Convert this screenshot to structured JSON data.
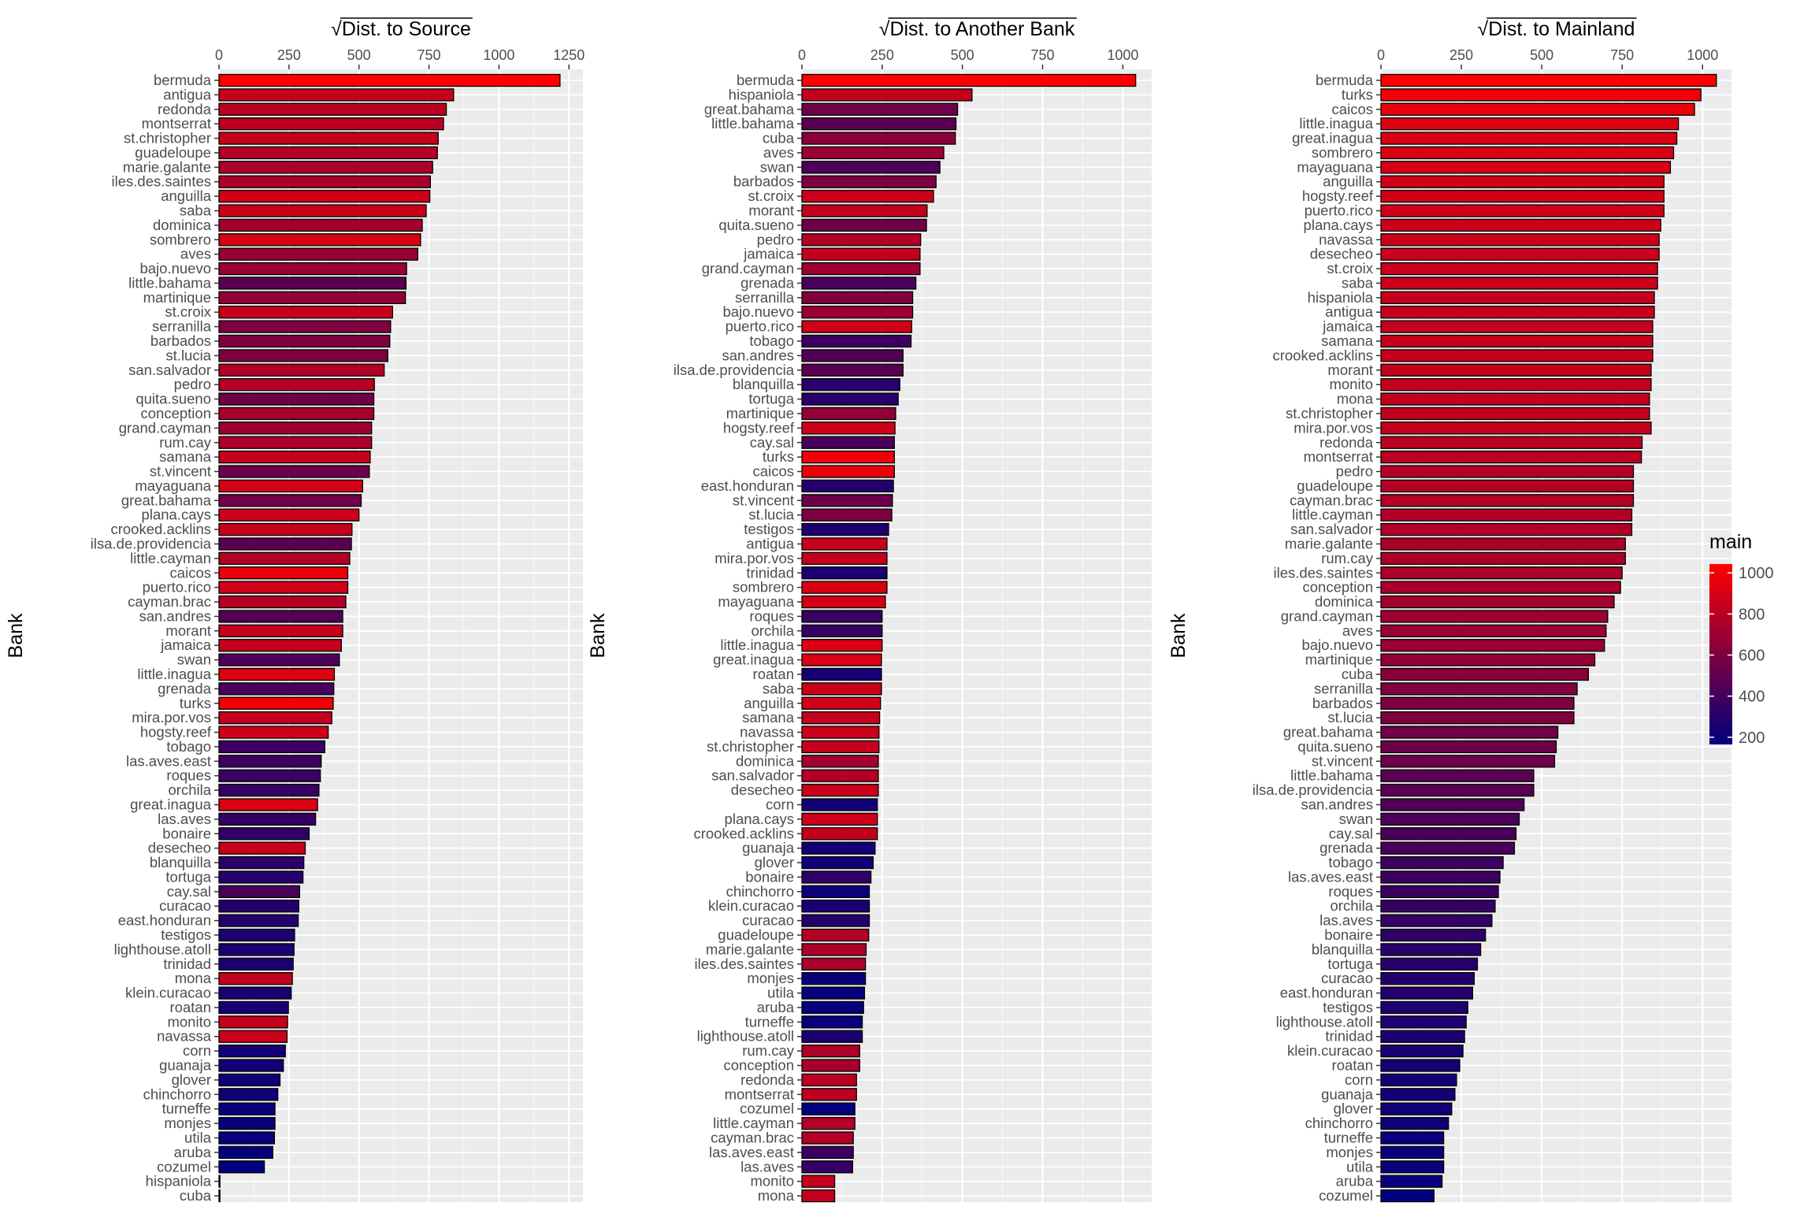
{
  "chart_data": [
    {
      "type": "bar",
      "orientation": "horizontal",
      "title": "Dist. to Source",
      "title_symbol": "√",
      "ylabel": "Bank",
      "xlim": [
        0,
        1300
      ],
      "xticks": [
        0,
        250,
        500,
        750,
        1000,
        1250
      ],
      "categories": [
        "bermuda",
        "antigua",
        "redonda",
        "montserrat",
        "st.christopher",
        "guadeloupe",
        "marie.galante",
        "iles.des.saintes",
        "anguilla",
        "saba",
        "dominica",
        "sombrero",
        "aves",
        "bajo.nuevo",
        "little.bahama",
        "martinique",
        "st.croix",
        "serranilla",
        "barbados",
        "st.lucia",
        "san.salvador",
        "pedro",
        "quita.sueno",
        "conception",
        "grand.cayman",
        "rum.cay",
        "samana",
        "st.vincent",
        "mayaguana",
        "great.bahama",
        "plana.cays",
        "crooked.acklins",
        "ilsa.de.providencia",
        "little.cayman",
        "caicos",
        "puerto.rico",
        "cayman.brac",
        "san.andres",
        "morant",
        "jamaica",
        "swan",
        "little.inagua",
        "grenada",
        "turks",
        "mira.por.vos",
        "hogsty.reef",
        "tobago",
        "las.aves.east",
        "roques",
        "orchila",
        "great.inagua",
        "las.aves",
        "bonaire",
        "desecheo",
        "blanquilla",
        "tortuga",
        "cay.sal",
        "curacao",
        "east.honduran",
        "testigos",
        "lighthouse.atoll",
        "trinidad",
        "mona",
        "klein.curacao",
        "roatan",
        "monito",
        "navassa",
        "corn",
        "guanaja",
        "glover",
        "chinchorro",
        "turneffe",
        "monjes",
        "utila",
        "aruba",
        "cozumel",
        "hispaniola",
        "cuba"
      ],
      "values": [
        1218,
        838,
        812,
        802,
        783,
        780,
        763,
        755,
        753,
        740,
        726,
        720,
        710,
        670,
        668,
        666,
        620,
        613,
        610,
        603,
        590,
        555,
        553,
        553,
        545,
        545,
        540,
        537,
        513,
        508,
        500,
        475,
        473,
        467,
        460,
        460,
        453,
        442,
        442,
        437,
        430,
        412,
        410,
        408,
        403,
        390,
        378,
        365,
        362,
        357,
        352,
        345,
        322,
        308,
        303,
        300,
        288,
        285,
        283,
        270,
        268,
        265,
        262,
        258,
        248,
        245,
        243,
        237,
        230,
        218,
        210,
        200,
        200,
        198,
        192,
        162,
        2,
        2
      ],
      "main": [
        1043,
        850,
        812,
        810,
        850,
        785,
        760,
        750,
        880,
        860,
        725,
        910,
        700,
        695,
        475,
        665,
        860,
        610,
        600,
        600,
        780,
        785,
        545,
        745,
        705,
        760,
        845,
        540,
        900,
        550,
        870,
        845,
        475,
        780,
        975,
        880,
        785,
        445,
        840,
        845,
        430,
        925,
        415,
        995,
        840,
        880,
        380,
        370,
        365,
        355,
        920,
        345,
        325,
        865,
        310,
        300,
        420,
        290,
        285,
        270,
        265,
        260,
        835,
        255,
        245,
        840,
        865,
        230,
        225,
        220,
        210,
        195,
        195,
        195,
        190,
        165,
        850,
        645
      ]
    },
    {
      "type": "bar",
      "orientation": "horizontal",
      "title": "Dist. to Another Bank",
      "title_symbol": "√",
      "ylabel": "Bank",
      "xlim": [
        0,
        1090
      ],
      "xticks": [
        0,
        250,
        500,
        750,
        1000
      ],
      "categories": [
        "bermuda",
        "hispaniola",
        "great.bahama",
        "little.bahama",
        "cuba",
        "aves",
        "swan",
        "barbados",
        "st.croix",
        "morant",
        "quita.sueno",
        "pedro",
        "jamaica",
        "grand.cayman",
        "grenada",
        "serranilla",
        "bajo.nuevo",
        "puerto.rico",
        "tobago",
        "san.andres",
        "ilsa.de.providencia",
        "blanquilla",
        "tortuga",
        "martinique",
        "hogsty.reef",
        "cay.sal",
        "turks",
        "caicos",
        "east.honduran",
        "st.vincent",
        "st.lucia",
        "testigos",
        "antigua",
        "mira.por.vos",
        "trinidad",
        "sombrero",
        "mayaguana",
        "roques",
        "orchila",
        "little.inagua",
        "great.inagua",
        "roatan",
        "saba",
        "anguilla",
        "samana",
        "navassa",
        "st.christopher",
        "dominica",
        "san.salvador",
        "desecheo",
        "corn",
        "plana.cays",
        "crooked.acklins",
        "guanaja",
        "glover",
        "bonaire",
        "chinchorro",
        "klein.curacao",
        "curacao",
        "guadeloupe",
        "marie.galante",
        "iles.des.saintes",
        "monjes",
        "utila",
        "aruba",
        "turneffe",
        "lighthouse.atoll",
        "rum.cay",
        "conception",
        "redonda",
        "montserrat",
        "cozumel",
        "little.cayman",
        "cayman.brac",
        "las.aves.east",
        "las.aves",
        "monito",
        "mona"
      ],
      "values": [
        1040,
        530,
        485,
        480,
        478,
        442,
        430,
        418,
        410,
        390,
        388,
        370,
        368,
        368,
        355,
        345,
        345,
        342,
        340,
        315,
        315,
        305,
        300,
        292,
        290,
        288,
        288,
        288,
        285,
        282,
        280,
        270,
        265,
        265,
        265,
        265,
        260,
        250,
        250,
        250,
        248,
        248,
        248,
        245,
        242,
        240,
        240,
        238,
        238,
        238,
        235,
        235,
        235,
        228,
        222,
        215,
        210,
        210,
        210,
        208,
        200,
        198,
        198,
        195,
        192,
        188,
        188,
        180,
        180,
        170,
        170,
        165,
        165,
        160,
        160,
        158,
        102,
        102
      ],
      "main": [
        1043,
        845,
        550,
        475,
        645,
        700,
        430,
        600,
        860,
        840,
        545,
        785,
        845,
        705,
        415,
        610,
        695,
        880,
        380,
        445,
        475,
        310,
        300,
        665,
        880,
        420,
        995,
        975,
        285,
        540,
        600,
        270,
        850,
        840,
        260,
        910,
        900,
        365,
        355,
        925,
        920,
        245,
        860,
        880,
        845,
        865,
        850,
        725,
        780,
        865,
        225,
        870,
        845,
        230,
        220,
        325,
        210,
        255,
        290,
        785,
        760,
        750,
        195,
        195,
        190,
        195,
        265,
        760,
        745,
        812,
        810,
        165,
        780,
        785,
        370,
        345,
        840,
        835
      ]
    },
    {
      "type": "bar",
      "orientation": "horizontal",
      "title": "Dist. to Mainland",
      "title_symbol": "√",
      "ylabel": "Bank",
      "xlim": [
        0,
        1090
      ],
      "xticks": [
        0,
        250,
        500,
        750,
        1000
      ],
      "categories": [
        "bermuda",
        "turks",
        "caicos",
        "little.inagua",
        "great.inagua",
        "sombrero",
        "mayaguana",
        "anguilla",
        "hogsty.reef",
        "puerto.rico",
        "plana.cays",
        "navassa",
        "desecheo",
        "st.croix",
        "saba",
        "hispaniola",
        "antigua",
        "jamaica",
        "samana",
        "crooked.acklins",
        "morant",
        "monito",
        "mona",
        "st.christopher",
        "mira.por.vos",
        "redonda",
        "montserrat",
        "pedro",
        "guadeloupe",
        "cayman.brac",
        "little.cayman",
        "san.salvador",
        "marie.galante",
        "rum.cay",
        "iles.des.saintes",
        "conception",
        "dominica",
        "grand.cayman",
        "aves",
        "bajo.nuevo",
        "martinique",
        "cuba",
        "serranilla",
        "barbados",
        "st.lucia",
        "great.bahama",
        "quita.sueno",
        "st.vincent",
        "little.bahama",
        "ilsa.de.providencia",
        "san.andres",
        "swan",
        "cay.sal",
        "grenada",
        "tobago",
        "las.aves.east",
        "roques",
        "orchila",
        "las.aves",
        "bonaire",
        "blanquilla",
        "tortuga",
        "curacao",
        "east.honduran",
        "testigos",
        "lighthouse.atoll",
        "trinidad",
        "klein.curacao",
        "roatan",
        "corn",
        "guanaja",
        "glover",
        "chinchorro",
        "turneffe",
        "monjes",
        "utila",
        "aruba",
        "cozumel"
      ],
      "values": [
        1043,
        995,
        975,
        925,
        920,
        910,
        900,
        880,
        880,
        880,
        870,
        865,
        865,
        860,
        860,
        850,
        850,
        845,
        845,
        845,
        840,
        840,
        835,
        835,
        840,
        812,
        810,
        785,
        785,
        785,
        780,
        780,
        760,
        760,
        750,
        745,
        725,
        705,
        700,
        695,
        665,
        645,
        610,
        600,
        600,
        550,
        545,
        540,
        475,
        475,
        445,
        430,
        420,
        415,
        380,
        370,
        365,
        355,
        345,
        325,
        310,
        300,
        290,
        285,
        270,
        265,
        260,
        255,
        245,
        235,
        230,
        220,
        210,
        195,
        195,
        195,
        190,
        165
      ],
      "main": [
        1043,
        995,
        975,
        925,
        920,
        910,
        900,
        880,
        880,
        880,
        870,
        865,
        865,
        860,
        860,
        850,
        850,
        845,
        845,
        845,
        840,
        840,
        835,
        835,
        840,
        812,
        810,
        785,
        785,
        785,
        780,
        780,
        760,
        760,
        750,
        745,
        725,
        705,
        700,
        695,
        665,
        645,
        610,
        600,
        600,
        550,
        545,
        540,
        475,
        475,
        445,
        430,
        420,
        415,
        380,
        370,
        365,
        355,
        345,
        325,
        310,
        300,
        290,
        285,
        270,
        265,
        260,
        255,
        245,
        235,
        230,
        220,
        210,
        195,
        195,
        195,
        190,
        165
      ]
    }
  ],
  "legend": {
    "title": "main",
    "min": 165,
    "max": 1043,
    "ticks": [
      200,
      400,
      600,
      800,
      1000
    ],
    "low_color": "#00007f",
    "high_color": "#ff0000",
    "position": "right"
  },
  "colors": {
    "panel_bg": "#ebebeb",
    "grid_major": "#ffffff",
    "bar_outline": "#000000"
  }
}
